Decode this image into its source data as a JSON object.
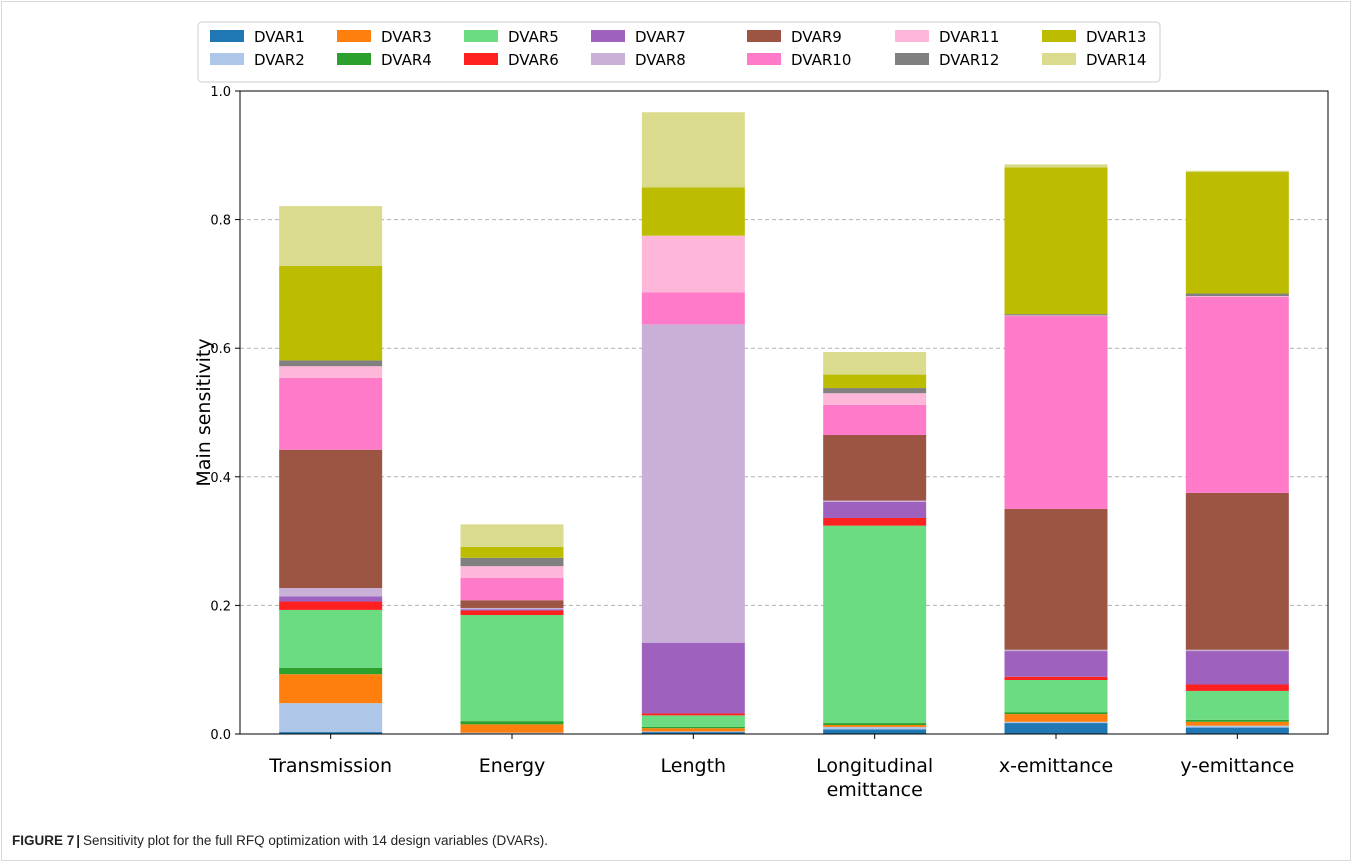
{
  "caption": {
    "label": "FIGURE 7",
    "separator": "|",
    "text": "Sensitivity plot for the full RFQ optimization with 14 design variables (DVARs)."
  },
  "chart_data": {
    "type": "bar",
    "stacked": true,
    "title": "",
    "xlabel": "",
    "ylabel": "Main sensitivity",
    "ylim": [
      0,
      1.0
    ],
    "yticks": [
      "0.0",
      "0.2",
      "0.4",
      "0.6",
      "0.8",
      "1.0"
    ],
    "grid": "y-dashed",
    "legend_position": "top",
    "categories": [
      [
        "Transmission"
      ],
      [
        "Energy"
      ],
      [
        "Length"
      ],
      [
        "Longitudinal",
        "emittance"
      ],
      [
        "x-emittance"
      ],
      [
        "y-emittance"
      ]
    ],
    "series": [
      {
        "name": "DVAR1",
        "color": "#1f77b4",
        "values": [
          0.003,
          0.001,
          0.003,
          0.007,
          0.017,
          0.01
        ]
      },
      {
        "name": "DVAR2",
        "color": "#aec7e8",
        "values": [
          0.045,
          0.001,
          0.001,
          0.004,
          0.002,
          0.003
        ]
      },
      {
        "name": "DVAR3",
        "color": "#ff7f0e",
        "values": [
          0.045,
          0.013,
          0.005,
          0.003,
          0.012,
          0.006
        ]
      },
      {
        "name": "DVAR4",
        "color": "#2ca02c",
        "values": [
          0.01,
          0.005,
          0.002,
          0.003,
          0.003,
          0.003
        ]
      },
      {
        "name": "DVAR5",
        "color": "#6bdc82",
        "values": [
          0.09,
          0.165,
          0.018,
          0.307,
          0.05,
          0.045
        ]
      },
      {
        "name": "DVAR6",
        "color": "#ff2020",
        "values": [
          0.013,
          0.007,
          0.003,
          0.012,
          0.005,
          0.01
        ]
      },
      {
        "name": "DVAR7",
        "color": "#9e62be",
        "values": [
          0.008,
          0.002,
          0.11,
          0.025,
          0.04,
          0.052
        ]
      },
      {
        "name": "DVAR8",
        "color": "#c9b0d6",
        "values": [
          0.013,
          0.002,
          0.495,
          0.002,
          0.002,
          0.002
        ]
      },
      {
        "name": "DVAR9",
        "color": "#9c5443",
        "values": [
          0.215,
          0.012,
          0.0,
          0.102,
          0.219,
          0.244
        ]
      },
      {
        "name": "DVAR10",
        "color": "#ff7ac8",
        "values": [
          0.112,
          0.035,
          0.05,
          0.047,
          0.3,
          0.305
        ]
      },
      {
        "name": "DVAR11",
        "color": "#ffb7d9",
        "values": [
          0.018,
          0.018,
          0.088,
          0.018,
          0.001,
          0.001
        ]
      },
      {
        "name": "DVAR12",
        "color": "#808080",
        "values": [
          0.009,
          0.013,
          0.0,
          0.008,
          0.002,
          0.004
        ]
      },
      {
        "name": "DVAR13",
        "color": "#bcbd00",
        "values": [
          0.147,
          0.017,
          0.075,
          0.021,
          0.228,
          0.189
        ]
      },
      {
        "name": "DVAR14",
        "color": "#dadb8d",
        "values": [
          0.093,
          0.035,
          0.117,
          0.035,
          0.005,
          0.002
        ]
      }
    ]
  }
}
